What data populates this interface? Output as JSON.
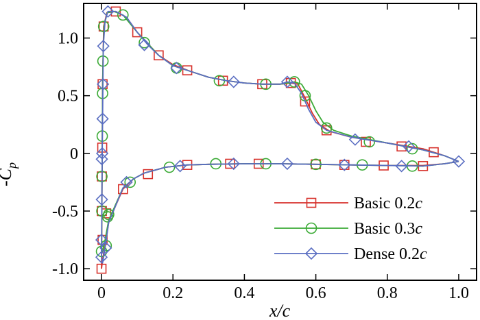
{
  "chart_data": {
    "type": "line",
    "title": "",
    "xlabel": "x/c",
    "ylabel": "-Cp",
    "xlim": [
      -0.05,
      1.05
    ],
    "ylim": [
      -1.1,
      1.3
    ],
    "grid": false,
    "legend_position": "bottom-right",
    "x_ticks": [
      0,
      0.2,
      0.4,
      0.6,
      0.8,
      1.0
    ],
    "x_tick_labels": [
      "0",
      "0.2",
      "0.4",
      "0.6",
      "0.8",
      "1.0"
    ],
    "y_ticks": [
      -1.0,
      -0.5,
      0,
      0.5,
      1.0
    ],
    "y_tick_labels": [
      "-1.0",
      "-0.5",
      "0",
      "0.5",
      "1.0"
    ],
    "series": [
      {
        "name": "Basic 0.2c",
        "label_text": "Basic 0.2",
        "label_italic": "c",
        "color": "#d7312b",
        "marker": "square",
        "upper": [
          [
            0,
            -1.0
          ],
          [
            0.001,
            -0.5
          ],
          [
            0.002,
            0.05
          ],
          [
            0.003,
            0.6
          ],
          [
            0.006,
            1.1
          ],
          [
            0.015,
            1.22
          ],
          [
            0.04,
            1.23
          ],
          [
            0.07,
            1.18
          ],
          [
            0.1,
            1.05
          ],
          [
            0.13,
            0.95
          ],
          [
            0.16,
            0.85
          ],
          [
            0.2,
            0.77
          ],
          [
            0.25,
            0.71
          ],
          [
            0.3,
            0.66
          ],
          [
            0.35,
            0.63
          ],
          [
            0.4,
            0.61
          ],
          [
            0.45,
            0.6
          ],
          [
            0.5,
            0.6
          ],
          [
            0.53,
            0.61
          ],
          [
            0.55,
            0.6
          ],
          [
            0.57,
            0.48
          ],
          [
            0.59,
            0.35
          ],
          [
            0.61,
            0.25
          ],
          [
            0.64,
            0.19
          ],
          [
            0.7,
            0.14
          ],
          [
            0.8,
            0.09
          ],
          [
            0.9,
            0.04
          ],
          [
            0.96,
            -0.02
          ],
          [
            1.0,
            -0.07
          ]
        ],
        "lower": [
          [
            0,
            -1.0
          ],
          [
            0.003,
            -0.92
          ],
          [
            0.01,
            -0.8
          ],
          [
            0.02,
            -0.6
          ],
          [
            0.04,
            -0.45
          ],
          [
            0.06,
            -0.31
          ],
          [
            0.09,
            -0.22
          ],
          [
            0.12,
            -0.17
          ],
          [
            0.18,
            -0.12
          ],
          [
            0.24,
            -0.1
          ],
          [
            0.3,
            -0.095
          ],
          [
            0.4,
            -0.09
          ],
          [
            0.5,
            -0.09
          ],
          [
            0.6,
            -0.095
          ],
          [
            0.7,
            -0.1
          ],
          [
            0.8,
            -0.105
          ],
          [
            0.9,
            -0.105
          ],
          [
            0.96,
            -0.09
          ],
          [
            1.0,
            -0.07
          ]
        ],
        "marker_points": [
          [
            0.003,
            0.6
          ],
          [
            0.006,
            1.1
          ],
          [
            0.04,
            1.23
          ],
          [
            0.1,
            1.05
          ],
          [
            0.16,
            0.85
          ],
          [
            0.24,
            0.72
          ],
          [
            0.34,
            0.63
          ],
          [
            0.45,
            0.6
          ],
          [
            0.53,
            0.61
          ],
          [
            0.57,
            0.45
          ],
          [
            0.63,
            0.2
          ],
          [
            0.74,
            0.1
          ],
          [
            0.84,
            0.06
          ],
          [
            0.93,
            0.01
          ],
          [
            0.002,
            0.05
          ],
          [
            0.001,
            -0.2
          ],
          [
            0.001,
            -0.5
          ],
          [
            0.003,
            -0.75
          ],
          [
            0.0,
            -1.0
          ],
          [
            0.013,
            -0.52
          ],
          [
            0.06,
            -0.31
          ],
          [
            0.13,
            -0.18
          ],
          [
            0.24,
            -0.1
          ],
          [
            0.36,
            -0.09
          ],
          [
            0.44,
            -0.09
          ],
          [
            0.6,
            -0.095
          ],
          [
            0.68,
            -0.1
          ],
          [
            0.79,
            -0.105
          ],
          [
            0.9,
            -0.11
          ]
        ]
      },
      {
        "name": "Basic 0.3c",
        "label_text": "Basic 0.3",
        "label_italic": "c",
        "color": "#3aaa35",
        "marker": "circle",
        "upper": [
          [
            0,
            -0.85
          ],
          [
            0.001,
            -0.5
          ],
          [
            0.002,
            0.15
          ],
          [
            0.003,
            0.52
          ],
          [
            0.004,
            0.8
          ],
          [
            0.007,
            1.1
          ],
          [
            0.016,
            1.22
          ],
          [
            0.035,
            1.23
          ],
          [
            0.06,
            1.2
          ],
          [
            0.1,
            1.05
          ],
          [
            0.13,
            0.95
          ],
          [
            0.16,
            0.85
          ],
          [
            0.2,
            0.76
          ],
          [
            0.25,
            0.71
          ],
          [
            0.3,
            0.66
          ],
          [
            0.35,
            0.63
          ],
          [
            0.4,
            0.61
          ],
          [
            0.45,
            0.6
          ],
          [
            0.5,
            0.6
          ],
          [
            0.54,
            0.62
          ],
          [
            0.56,
            0.6
          ],
          [
            0.58,
            0.5
          ],
          [
            0.6,
            0.37
          ],
          [
            0.62,
            0.27
          ],
          [
            0.65,
            0.2
          ],
          [
            0.7,
            0.15
          ],
          [
            0.8,
            0.09
          ],
          [
            0.9,
            0.03
          ],
          [
            0.96,
            -0.02
          ],
          [
            1.0,
            -0.07
          ]
        ],
        "lower": [
          [
            0,
            -0.85
          ],
          [
            0.003,
            -0.85
          ],
          [
            0.01,
            -0.75
          ],
          [
            0.02,
            -0.58
          ],
          [
            0.04,
            -0.44
          ],
          [
            0.06,
            -0.3
          ],
          [
            0.09,
            -0.22
          ],
          [
            0.12,
            -0.17
          ],
          [
            0.18,
            -0.12
          ],
          [
            0.24,
            -0.1
          ],
          [
            0.3,
            -0.095
          ],
          [
            0.4,
            -0.09
          ],
          [
            0.5,
            -0.09
          ],
          [
            0.6,
            -0.095
          ],
          [
            0.7,
            -0.1
          ],
          [
            0.8,
            -0.105
          ],
          [
            0.9,
            -0.11
          ],
          [
            0.96,
            -0.09
          ],
          [
            1.0,
            -0.07
          ]
        ],
        "marker_points": [
          [
            0.006,
            1.1
          ],
          [
            0.004,
            0.8
          ],
          [
            0.003,
            0.52
          ],
          [
            0.002,
            0.15
          ],
          [
            0.001,
            -0.2
          ],
          [
            0.001,
            -0.5
          ],
          [
            0.0,
            -0.85
          ],
          [
            0.013,
            -0.8
          ],
          [
            0.017,
            -0.55
          ],
          [
            0.06,
            1.2
          ],
          [
            0.12,
            0.96
          ],
          [
            0.21,
            0.74
          ],
          [
            0.33,
            0.63
          ],
          [
            0.46,
            0.6
          ],
          [
            0.54,
            0.62
          ],
          [
            0.57,
            0.5
          ],
          [
            0.63,
            0.22
          ],
          [
            0.75,
            0.1
          ],
          [
            0.87,
            0.04
          ],
          [
            0.02,
            -0.53
          ],
          [
            0.08,
            -0.25
          ],
          [
            0.19,
            -0.12
          ],
          [
            0.32,
            -0.09
          ],
          [
            0.46,
            -0.09
          ],
          [
            0.6,
            -0.095
          ],
          [
            0.73,
            -0.1
          ],
          [
            0.87,
            -0.11
          ]
        ]
      },
      {
        "name": "Dense 0.2c",
        "label_text": "Dense 0.2",
        "label_italic": "c",
        "color": "#5a6ec2",
        "marker": "diamond",
        "upper": [
          [
            0,
            -0.9
          ],
          [
            0.001,
            -0.4
          ],
          [
            0.002,
            0.0
          ],
          [
            0.003,
            0.3
          ],
          [
            0.004,
            0.6
          ],
          [
            0.005,
            0.93
          ],
          [
            0.01,
            1.15
          ],
          [
            0.018,
            1.23
          ],
          [
            0.04,
            1.23
          ],
          [
            0.07,
            1.18
          ],
          [
            0.1,
            1.05
          ],
          [
            0.13,
            0.94
          ],
          [
            0.16,
            0.85
          ],
          [
            0.2,
            0.76
          ],
          [
            0.25,
            0.71
          ],
          [
            0.3,
            0.66
          ],
          [
            0.35,
            0.63
          ],
          [
            0.4,
            0.61
          ],
          [
            0.45,
            0.6
          ],
          [
            0.5,
            0.6
          ],
          [
            0.52,
            0.62
          ],
          [
            0.54,
            0.61
          ],
          [
            0.56,
            0.52
          ],
          [
            0.58,
            0.38
          ],
          [
            0.6,
            0.27
          ],
          [
            0.63,
            0.2
          ],
          [
            0.7,
            0.14
          ],
          [
            0.8,
            0.09
          ],
          [
            0.9,
            0.03
          ],
          [
            0.96,
            -0.02
          ],
          [
            1.0,
            -0.07
          ]
        ],
        "lower": [
          [
            0,
            -0.9
          ],
          [
            0.003,
            -0.95
          ],
          [
            0.01,
            -0.82
          ],
          [
            0.02,
            -0.6
          ],
          [
            0.04,
            -0.45
          ],
          [
            0.06,
            -0.3
          ],
          [
            0.09,
            -0.22
          ],
          [
            0.12,
            -0.17
          ],
          [
            0.18,
            -0.12
          ],
          [
            0.24,
            -0.1
          ],
          [
            0.3,
            -0.095
          ],
          [
            0.4,
            -0.09
          ],
          [
            0.5,
            -0.09
          ],
          [
            0.6,
            -0.095
          ],
          [
            0.7,
            -0.1
          ],
          [
            0.8,
            -0.105
          ],
          [
            0.9,
            -0.11
          ],
          [
            0.96,
            -0.09
          ],
          [
            1.0,
            -0.07
          ]
        ],
        "marker_points": [
          [
            0.018,
            1.23
          ],
          [
            0.005,
            0.93
          ],
          [
            0.004,
            0.6
          ],
          [
            0.003,
            0.3
          ],
          [
            0.002,
            0.0
          ],
          [
            0.001,
            -0.05
          ],
          [
            0.001,
            -0.4
          ],
          [
            0.0,
            -0.75
          ],
          [
            0.0,
            -0.9
          ],
          [
            0.012,
            -0.82
          ],
          [
            0.12,
            0.94
          ],
          [
            0.21,
            0.74
          ],
          [
            0.37,
            0.62
          ],
          [
            0.52,
            0.62
          ],
          [
            0.71,
            0.12
          ],
          [
            0.86,
            0.06
          ],
          [
            1.0,
            -0.07
          ],
          [
            0.07,
            -0.25
          ],
          [
            0.22,
            -0.11
          ],
          [
            0.37,
            -0.09
          ],
          [
            0.52,
            -0.09
          ],
          [
            0.68,
            -0.1
          ],
          [
            0.84,
            -0.11
          ]
        ]
      }
    ]
  }
}
